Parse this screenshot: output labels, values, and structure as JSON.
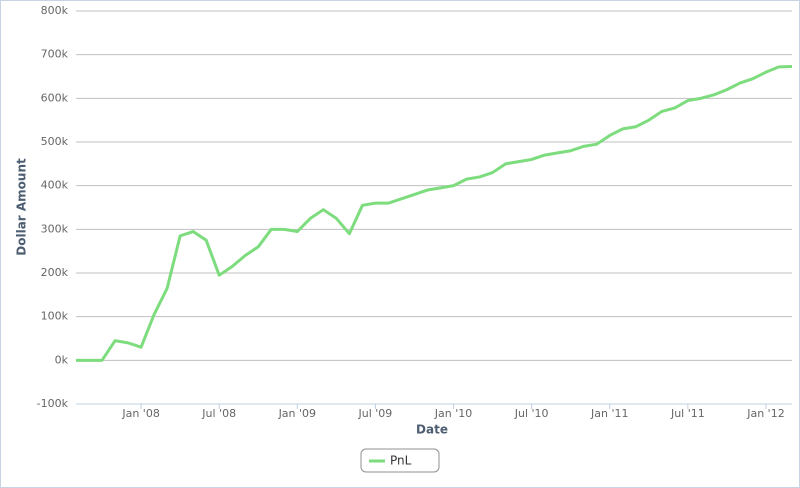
{
  "chart_data": {
    "type": "line",
    "x_title": "Date",
    "y_title": "Dollar Amount",
    "x": [
      "2007-08",
      "2007-09",
      "2007-10",
      "2007-11",
      "2007-12",
      "2008-01",
      "2008-02",
      "2008-03",
      "2008-04",
      "2008-05",
      "2008-06",
      "2008-07",
      "2008-08",
      "2008-09",
      "2008-10",
      "2008-11",
      "2008-12",
      "2009-01",
      "2009-02",
      "2009-03",
      "2009-04",
      "2009-05",
      "2009-06",
      "2009-07",
      "2009-08",
      "2009-09",
      "2009-10",
      "2009-11",
      "2009-12",
      "2010-01",
      "2010-02",
      "2010-03",
      "2010-04",
      "2010-05",
      "2010-06",
      "2010-07",
      "2010-08",
      "2010-09",
      "2010-10",
      "2010-11",
      "2010-12",
      "2011-01",
      "2011-02",
      "2011-03",
      "2011-04",
      "2011-05",
      "2011-06",
      "2011-07",
      "2011-08",
      "2011-09",
      "2011-10",
      "2011-11",
      "2011-12",
      "2012-01",
      "2012-02",
      "2012-03"
    ],
    "series": [
      {
        "name": "PnL",
        "color": "#7ddc7d",
        "values": [
          0,
          0,
          0,
          45000,
          40000,
          30000,
          105000,
          165000,
          285000,
          295000,
          275000,
          195000,
          215000,
          240000,
          260000,
          300000,
          300000,
          295000,
          325000,
          345000,
          325000,
          290000,
          355000,
          360000,
          360000,
          370000,
          380000,
          390000,
          395000,
          400000,
          415000,
          420000,
          430000,
          450000,
          455000,
          460000,
          470000,
          475000,
          480000,
          490000,
          495000,
          515000,
          530000,
          535000,
          550000,
          570000,
          578000,
          595000,
          600000,
          608000,
          620000,
          635000,
          645000,
          660000,
          672000,
          673000
        ]
      }
    ],
    "xlim": [
      "2007-08",
      "2012-03"
    ],
    "xticks": [
      {
        "value": "2008-01",
        "label": "Jan '08"
      },
      {
        "value": "2008-07",
        "label": "Jul '08"
      },
      {
        "value": "2009-01",
        "label": "Jan '09"
      },
      {
        "value": "2009-07",
        "label": "Jul '09"
      },
      {
        "value": "2010-01",
        "label": "Jan '10"
      },
      {
        "value": "2010-07",
        "label": "Jul '10"
      },
      {
        "value": "2011-01",
        "label": "Jan '11"
      },
      {
        "value": "2011-07",
        "label": "Jul '11"
      },
      {
        "value": "2012-01",
        "label": "Jan '12"
      }
    ],
    "ylim": [
      -100000,
      800000
    ],
    "yticks": [
      {
        "value": -100000,
        "label": "-100k"
      },
      {
        "value": 0,
        "label": "0k"
      },
      {
        "value": 100000,
        "label": "100k"
      },
      {
        "value": 200000,
        "label": "200k"
      },
      {
        "value": 300000,
        "label": "300k"
      },
      {
        "value": 400000,
        "label": "400k"
      },
      {
        "value": 500000,
        "label": "500k"
      },
      {
        "value": 600000,
        "label": "600k"
      },
      {
        "value": 700000,
        "label": "700k"
      },
      {
        "value": 800000,
        "label": "800k"
      }
    ],
    "grid": true
  }
}
